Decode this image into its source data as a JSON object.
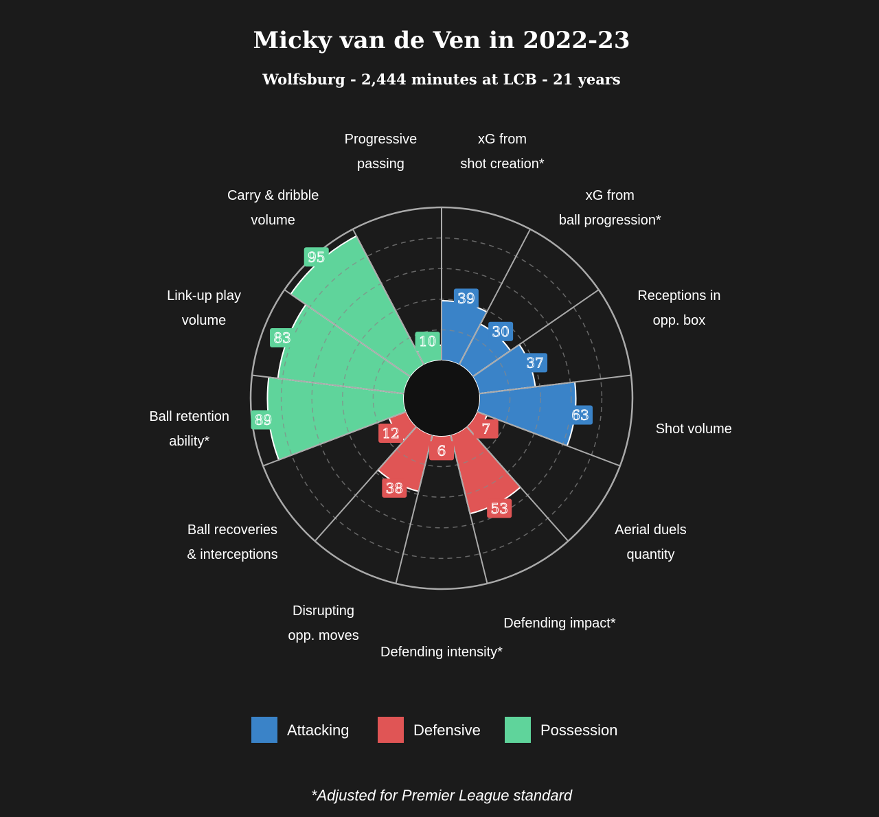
{
  "chart_data": {
    "type": "polar_bar",
    "title": "Micky van de Ven in 2022-23",
    "subtitle": "Wolfsburg - 2,444 minutes at LCB - 21 years",
    "categories": [
      "xG from\nshot creation*",
      "xG from\nball progression*",
      "Receptions in\nopp. box",
      "Shot volume",
      "Aerial duels\nquantity",
      "Defending impact*",
      "Defending intensity*",
      "Disrupting\nopp. moves",
      "Ball recoveries\n& interceptions",
      "Ball retention\nability*",
      "Link-up play\nvolume",
      "Carry & dribble\nvolume",
      "Progressive\npassing"
    ],
    "series": [
      {
        "name": "Attacking",
        "color": "#3a83c8",
        "values": [
          39,
          30,
          37,
          63,
          null,
          null,
          null,
          null,
          null,
          null,
          null,
          null,
          null
        ]
      },
      {
        "name": "Defensive",
        "color": "#e05555",
        "values": [
          null,
          null,
          null,
          null,
          7,
          53,
          6,
          38,
          12,
          null,
          null,
          null,
          null
        ]
      },
      {
        "name": "Possession",
        "color": "#5fd49b",
        "values": [
          null,
          null,
          null,
          null,
          null,
          null,
          null,
          null,
          null,
          89,
          83,
          95,
          10
        ]
      }
    ],
    "ylim": [
      0,
      100
    ],
    "yticks": [
      20,
      40,
      60,
      80
    ],
    "grid": true,
    "note": "*Adjusted for Premier League standard"
  }
}
